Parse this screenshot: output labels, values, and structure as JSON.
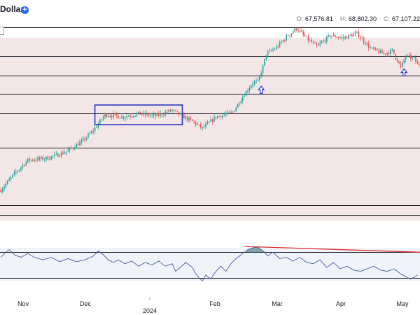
{
  "header": {
    "title": "Dollar",
    "ohlc": [
      {
        "key": "O:",
        "value": "67,576.81"
      },
      {
        "key": "H:",
        "value": "68,802.30"
      },
      {
        "key": "C:",
        "value": "67,107.22"
      }
    ]
  },
  "colors": {
    "up": "#26a69a",
    "down": "#ef5350",
    "band": "#f2e6e6",
    "rsi_line": "#4a5a9e",
    "rsi_band": "#f0f3fa",
    "trendline": "#e03030",
    "box": "#1f2fbf",
    "arrow": "#2233cc"
  },
  "chart_data": [
    {
      "type": "candlestick",
      "x_labels": [
        "Nov",
        "Dec",
        "2024",
        "Feb",
        "Mar",
        "Apr",
        "May"
      ],
      "price_range": [
        26000,
        72000
      ],
      "horizontal_levels": [
        70600,
        64400,
        60000,
        56000,
        51800,
        44200,
        31600,
        29500
      ],
      "price_path": [
        [
          0,
          35000
        ],
        [
          8,
          38500
        ],
        [
          16,
          41500
        ],
        [
          28,
          42000
        ],
        [
          38,
          43200
        ],
        [
          48,
          45500
        ],
        [
          55,
          48000
        ],
        [
          62,
          51500
        ],
        [
          72,
          51000
        ],
        [
          82,
          51700
        ],
        [
          92,
          51200
        ],
        [
          102,
          52400
        ],
        [
          108,
          51200
        ],
        [
          114,
          50000
        ],
        [
          120,
          48500
        ],
        [
          128,
          51000
        ],
        [
          138,
          52000
        ],
        [
          144,
          55500
        ],
        [
          150,
          58500
        ],
        [
          153,
          58700
        ],
        [
          156,
          62000
        ],
        [
          158,
          64800
        ],
        [
          164,
          66200
        ],
        [
          170,
          68500
        ],
        [
          176,
          70400
        ],
        [
          182,
          68200
        ],
        [
          188,
          66400
        ],
        [
          196,
          68800
        ],
        [
          204,
          68300
        ],
        [
          212,
          69300
        ],
        [
          220,
          66000
        ],
        [
          228,
          64800
        ],
        [
          233,
          65500
        ],
        [
          236,
          63500
        ],
        [
          238,
          61700
        ],
        [
          241,
          64300
        ],
        [
          246,
          63800
        ],
        [
          248,
          62500
        ]
      ],
      "markers": [
        "up-arrow",
        "up-arrow"
      ]
    },
    {
      "type": "line",
      "indicator": "RSI",
      "y_range": [
        0,
        100
      ],
      "guide_levels": [
        70,
        30
      ],
      "values": [
        [
          0,
          62
        ],
        [
          3,
          70
        ],
        [
          5,
          74
        ],
        [
          8,
          66
        ],
        [
          12,
          62
        ],
        [
          16,
          68
        ],
        [
          20,
          62
        ],
        [
          25,
          58
        ],
        [
          30,
          62
        ],
        [
          35,
          55
        ],
        [
          40,
          60
        ],
        [
          45,
          55
        ],
        [
          50,
          58
        ],
        [
          55,
          64
        ],
        [
          58,
          72
        ],
        [
          61,
          66
        ],
        [
          64,
          58
        ],
        [
          67,
          54
        ],
        [
          70,
          58
        ],
        [
          74,
          52
        ],
        [
          78,
          56
        ],
        [
          82,
          48
        ],
        [
          86,
          54
        ],
        [
          90,
          50
        ],
        [
          94,
          56
        ],
        [
          98,
          48
        ],
        [
          102,
          52
        ],
        [
          104,
          40
        ],
        [
          106,
          44
        ],
        [
          110,
          54
        ],
        [
          114,
          46
        ],
        [
          116,
          36
        ],
        [
          118,
          30
        ],
        [
          120,
          25
        ],
        [
          122,
          34
        ],
        [
          125,
          28
        ],
        [
          128,
          40
        ],
        [
          131,
          48
        ],
        [
          134,
          40
        ],
        [
          137,
          52
        ],
        [
          140,
          60
        ],
        [
          144,
          68
        ],
        [
          147,
          74
        ],
        [
          150,
          77
        ],
        [
          153,
          78
        ],
        [
          156,
          72
        ],
        [
          159,
          64
        ],
        [
          162,
          70
        ],
        [
          166,
          60
        ],
        [
          170,
          62
        ],
        [
          174,
          56
        ],
        [
          178,
          62
        ],
        [
          182,
          54
        ],
        [
          186,
          52
        ],
        [
          190,
          58
        ],
        [
          194,
          46
        ],
        [
          198,
          54
        ],
        [
          202,
          44
        ],
        [
          206,
          48
        ],
        [
          210,
          42
        ],
        [
          214,
          40
        ],
        [
          218,
          44
        ],
        [
          222,
          48
        ],
        [
          226,
          42
        ],
        [
          230,
          40
        ],
        [
          234,
          44
        ],
        [
          238,
          36
        ],
        [
          242,
          30
        ],
        [
          244,
          28
        ],
        [
          248,
          34
        ]
      ]
    }
  ]
}
